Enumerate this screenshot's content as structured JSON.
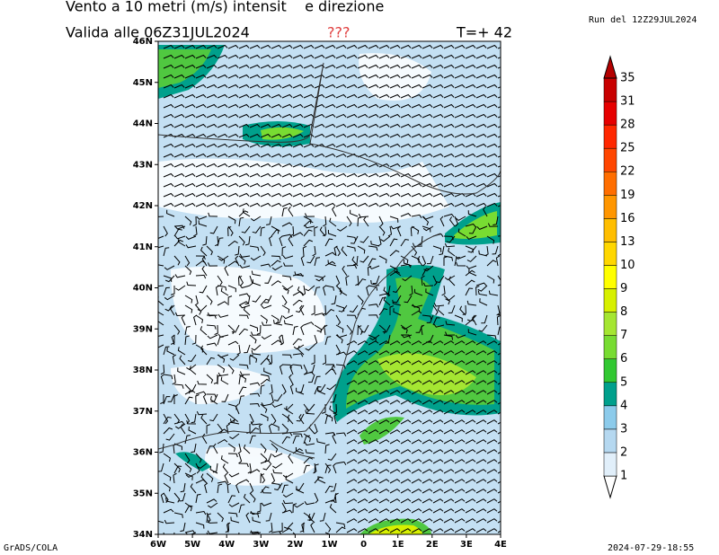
{
  "header": {
    "title": "Vento a 10 metri (m/s) intensit    e direzione",
    "valid": "Valida alle 06Z31JUL2024",
    "flag": "???",
    "step": "T=+ 42",
    "run": "Run del 12Z29JUL2024"
  },
  "map": {
    "lat_ticks": [
      {
        "value": 46,
        "label": "46N"
      },
      {
        "value": 45,
        "label": "45N"
      },
      {
        "value": 44,
        "label": "44N"
      },
      {
        "value": 43,
        "label": "43N"
      },
      {
        "value": 42,
        "label": "42N"
      },
      {
        "value": 41,
        "label": "41N"
      },
      {
        "value": 40,
        "label": "40N"
      },
      {
        "value": 39,
        "label": "39N"
      },
      {
        "value": 38,
        "label": "38N"
      },
      {
        "value": 37,
        "label": "37N"
      },
      {
        "value": 36,
        "label": "36N"
      },
      {
        "value": 35,
        "label": "35N"
      },
      {
        "value": 34,
        "label": "34N"
      }
    ],
    "lon_ticks": [
      {
        "value": -6,
        "label": "6W"
      },
      {
        "value": -5,
        "label": "5W"
      },
      {
        "value": -4,
        "label": "4W"
      },
      {
        "value": -3,
        "label": "3W"
      },
      {
        "value": -2,
        "label": "2W"
      },
      {
        "value": -1,
        "label": "1W"
      },
      0,
      {
        "value": 1,
        "label": "1E"
      },
      {
        "value": 2,
        "label": "2E"
      },
      {
        "value": 3,
        "label": "3E"
      },
      {
        "value": 4,
        "label": "4E"
      }
    ],
    "latlim": [
      34,
      46
    ],
    "lonlim": [
      -6,
      4
    ]
  },
  "colorbar": {
    "levels": [
      1,
      2,
      3,
      4,
      5,
      6,
      7,
      8,
      9,
      10,
      13,
      16,
      19,
      22,
      25,
      28,
      31,
      35
    ],
    "colors": [
      "#ffffff",
      "#e1effa",
      "#b5d8f0",
      "#8ccbeb",
      "#00a08c",
      "#32c832",
      "#78dc32",
      "#a5e632",
      "#d7f000",
      "#ffff00",
      "#ffd700",
      "#ffbe00",
      "#ff9600",
      "#ff6e00",
      "#ff4600",
      "#ff2800",
      "#e60000",
      "#c80000",
      "#b40000"
    ]
  },
  "footer": {
    "left": "GrADS/COLA",
    "right": "2024-07-29-18:55"
  }
}
